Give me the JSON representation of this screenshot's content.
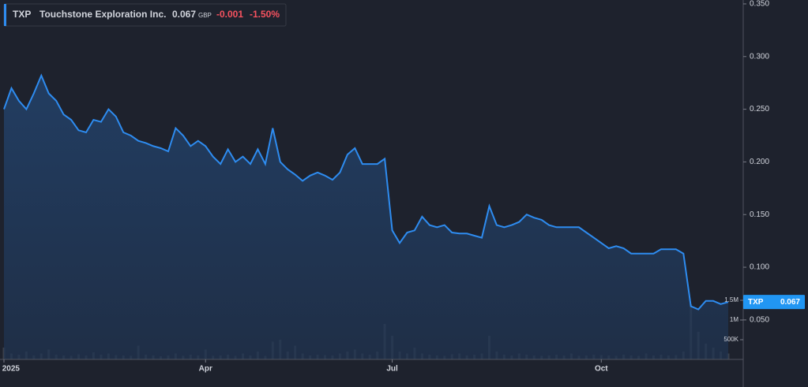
{
  "chart_data": {
    "type": "area",
    "symbol": "TXP",
    "name": "Touchstone Exploration Inc.",
    "price": 0.067,
    "currency": "GBP",
    "change": -0.001,
    "change_percent": "-1.50%",
    "categories": [
      "2025",
      null,
      null,
      null,
      null,
      null,
      null,
      null,
      null,
      null,
      null,
      null,
      null,
      null,
      null,
      null,
      null,
      null,
      null,
      null,
      null,
      null,
      null,
      null,
      null,
      null,
      null,
      "Apr",
      null,
      null,
      null,
      null,
      null,
      null,
      null,
      null,
      null,
      null,
      null,
      null,
      null,
      null,
      null,
      null,
      null,
      null,
      null,
      null,
      null,
      null,
      null,
      null,
      "Jul",
      null,
      null,
      null,
      null,
      null,
      null,
      null,
      null,
      null,
      null,
      null,
      null,
      null,
      null,
      null,
      null,
      null,
      null,
      null,
      null,
      null,
      null,
      null,
      null,
      null,
      null,
      null,
      "Oct",
      null,
      null,
      null,
      null,
      null,
      null,
      null,
      null,
      null,
      null,
      null,
      null,
      null,
      null,
      null,
      null,
      null
    ],
    "series": [
      {
        "name": "TXP",
        "color": "#2e8cf0",
        "values": [
          0.25,
          0.27,
          0.258,
          0.25,
          0.265,
          0.282,
          0.265,
          0.258,
          0.245,
          0.24,
          0.23,
          0.228,
          0.24,
          0.238,
          0.25,
          0.243,
          0.228,
          0.225,
          0.22,
          0.218,
          0.215,
          0.213,
          0.21,
          0.232,
          0.225,
          0.215,
          0.22,
          0.215,
          0.205,
          0.198,
          0.212,
          0.2,
          0.205,
          0.198,
          0.212,
          0.198,
          0.232,
          0.2,
          0.193,
          0.188,
          0.182,
          0.187,
          0.19,
          0.187,
          0.183,
          0.19,
          0.207,
          0.213,
          0.198,
          0.198,
          0.198,
          0.203,
          0.135,
          0.123,
          0.133,
          0.135,
          0.148,
          0.14,
          0.138,
          0.14,
          0.133,
          0.132,
          0.132,
          0.13,
          0.128,
          0.158,
          0.14,
          0.138,
          0.14,
          0.143,
          0.15,
          0.147,
          0.145,
          0.14,
          0.138,
          0.138,
          0.138,
          0.138,
          0.133,
          0.128,
          0.123,
          0.118,
          0.12,
          0.118,
          0.113,
          0.113,
          0.113,
          0.113,
          0.117,
          0.117,
          0.117,
          0.113,
          0.063,
          0.06,
          0.068,
          0.068,
          0.065,
          0.067
        ]
      },
      {
        "color": "#3b404b",
        "axis": "volume",
        "values": [
          300000,
          150000,
          120000,
          200000,
          100000,
          150000,
          250000,
          120000,
          100000,
          90000,
          130000,
          100000,
          180000,
          120000,
          150000,
          110000,
          100000,
          90000,
          350000,
          120000,
          100000,
          80000,
          100000,
          150000,
          90000,
          120000,
          100000,
          250000,
          90000,
          100000,
          120000,
          90000,
          150000,
          100000,
          200000,
          90000,
          450000,
          500000,
          200000,
          350000,
          150000,
          100000,
          120000,
          110000,
          100000,
          150000,
          200000,
          250000,
          150000,
          120000,
          200000,
          900000,
          600000,
          200000,
          150000,
          300000,
          150000,
          120000,
          100000,
          90000,
          130000,
          150000,
          100000,
          120000,
          150000,
          600000,
          200000,
          120000,
          100000,
          150000,
          120000,
          100000,
          90000,
          100000,
          120000,
          100000,
          150000,
          90000,
          100000,
          120000,
          110000,
          100000,
          90000,
          120000,
          100000,
          90000,
          150000,
          100000,
          120000,
          100000,
          110000,
          200000,
          1400000,
          700000,
          400000,
          300000,
          200000,
          150000
        ]
      }
    ],
    "ylim": [
      0.0125,
      0.3537
    ],
    "yticks": [
      {
        "value": 0.05,
        "label": "0.050"
      },
      {
        "value": 0.1,
        "label": "0.100"
      },
      {
        "value": 0.15,
        "label": "0.150"
      },
      {
        "value": 0.2,
        "label": "0.200"
      },
      {
        "value": 0.25,
        "label": "0.250"
      },
      {
        "value": 0.3,
        "label": "0.300"
      },
      {
        "value": 0.35,
        "label": "0.350"
      }
    ],
    "volume_ylim": [
      0,
      9120000
    ],
    "volume_ticks": [
      {
        "value": 500000,
        "label": "500K"
      },
      {
        "value": 1000000,
        "label": "1M"
      },
      {
        "value": 1500000,
        "label": "1.5M"
      }
    ],
    "grid": false
  }
}
